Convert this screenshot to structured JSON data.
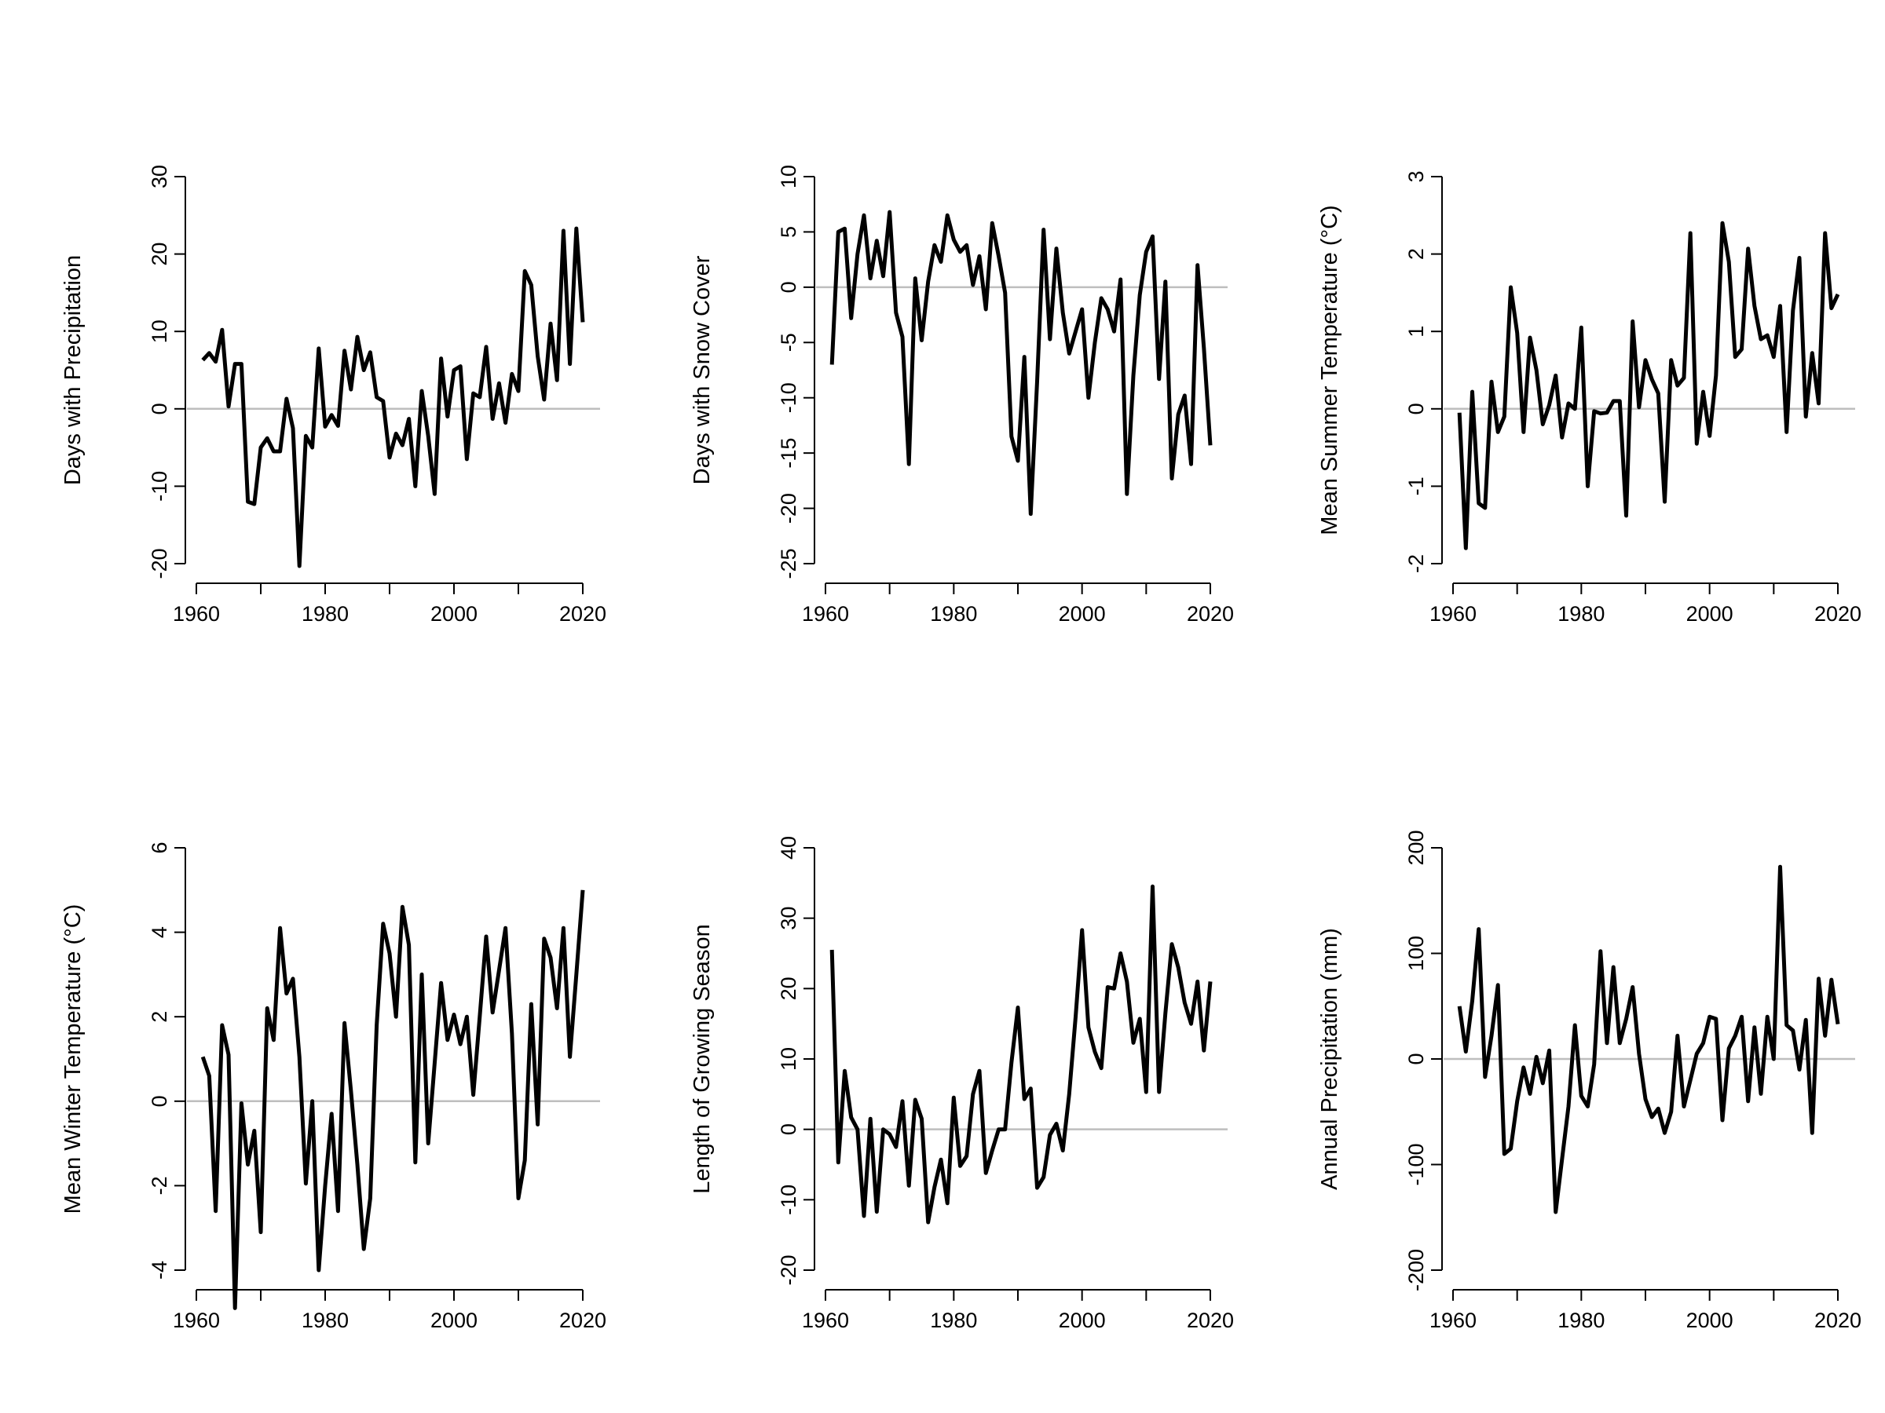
{
  "chart_data": [
    {
      "type": "line",
      "ylabel": "Days with Precipitation",
      "xlim": [
        1960,
        2020
      ],
      "ylim": [
        -20,
        30
      ],
      "x_ticks": [
        "1960",
        "1980",
        "2000",
        "2020"
      ],
      "y_ticks": [
        "-20",
        "-10",
        "0",
        "10",
        "20",
        "30"
      ],
      "reference_line": 0,
      "x": [
        1961,
        1962,
        1963,
        1964,
        1965,
        1966,
        1967,
        1968,
        1969,
        1970,
        1971,
        1972,
        1973,
        1974,
        1975,
        1976,
        1977,
        1978,
        1979,
        1980,
        1981,
        1982,
        1983,
        1984,
        1985,
        1986,
        1987,
        1988,
        1989,
        1990,
        1991,
        1992,
        1993,
        1994,
        1995,
        1996,
        1997,
        1998,
        1999,
        2000,
        2001,
        2002,
        2003,
        2004,
        2005,
        2006,
        2007,
        2008,
        2009,
        2010,
        2011,
        2012,
        2013,
        2014,
        2015,
        2016,
        2017,
        2018,
        2019,
        2020
      ],
      "series": [
        {
          "values": [
            6.3,
            7.2,
            6.1,
            10.2,
            0.3,
            5.8,
            5.8,
            -12,
            -12.3,
            -5,
            -3.8,
            -5.5,
            -5.5,
            1.3,
            -2.5,
            -20.3,
            -3.5,
            -5,
            7.8,
            -2.3,
            -0.8,
            -2.2,
            7.5,
            2.5,
            9.3,
            5,
            7.3,
            1.5,
            1,
            -6.3,
            -3.2,
            -4.7,
            -1.3,
            -10,
            2.3,
            -3.5,
            -11,
            6.5,
            -1,
            5,
            5.5,
            -6.5,
            2,
            1.5,
            8,
            -1.3,
            3.3,
            -1.8,
            4.5,
            2.3,
            17.8,
            16,
            6.8,
            1.2,
            11,
            3.7,
            23,
            5.8,
            23.3,
            11.2
          ]
        }
      ]
    },
    {
      "type": "line",
      "ylabel": "Days with Snow Cover",
      "xlim": [
        1960,
        2020
      ],
      "ylim": [
        -25,
        10
      ],
      "x_ticks": [
        "1960",
        "1980",
        "2000",
        "2020"
      ],
      "y_ticks": [
        "-25",
        "-20",
        "-15",
        "-10",
        "-5",
        "0",
        "5",
        "10"
      ],
      "reference_line": 0,
      "x": [
        1961,
        1962,
        1963,
        1964,
        1965,
        1966,
        1967,
        1968,
        1969,
        1970,
        1971,
        1972,
        1973,
        1974,
        1975,
        1976,
        1977,
        1978,
        1979,
        1980,
        1981,
        1982,
        1983,
        1984,
        1985,
        1986,
        1987,
        1988,
        1989,
        1990,
        1991,
        1992,
        1993,
        1994,
        1995,
        1996,
        1997,
        1998,
        1999,
        2000,
        2001,
        2002,
        2003,
        2004,
        2005,
        2006,
        2007,
        2008,
        2009,
        2010,
        2011,
        2012,
        2013,
        2014,
        2015,
        2016,
        2017,
        2018,
        2019,
        2020
      ],
      "series": [
        {
          "values": [
            -7,
            5,
            5.3,
            -2.8,
            3,
            6.5,
            0.8,
            4.2,
            1,
            6.8,
            -2.3,
            -4.5,
            -16,
            0.8,
            -4.8,
            0.5,
            3.8,
            2.3,
            6.5,
            4.3,
            3.2,
            3.8,
            0.2,
            2.8,
            -2,
            5.8,
            2.8,
            -0.5,
            -13.5,
            -15.7,
            -6.3,
            -20.5,
            -8.5,
            5.2,
            -4.7,
            3.5,
            -2.3,
            -6,
            -4,
            -2,
            -10,
            -5,
            -1,
            -2,
            -4,
            0.7,
            -18.7,
            -8,
            -0.7,
            3.2,
            4.6,
            -8.3,
            0.5,
            -17.3,
            -11.5,
            -9.8,
            -16,
            2,
            -5.5,
            -14.3
          ]
        }
      ]
    },
    {
      "type": "line",
      "ylabel": "Mean Summer Temperature (°C)",
      "xlim": [
        1960,
        2020
      ],
      "ylim": [
        -2,
        3
      ],
      "x_ticks": [
        "1960",
        "1980",
        "2000",
        "2020"
      ],
      "y_ticks": [
        "-2",
        "-1",
        "0",
        "1",
        "2",
        "3"
      ],
      "reference_line": 0,
      "x": [
        1961,
        1962,
        1963,
        1964,
        1965,
        1966,
        1967,
        1968,
        1969,
        1970,
        1971,
        1972,
        1973,
        1974,
        1975,
        1976,
        1977,
        1978,
        1979,
        1980,
        1981,
        1982,
        1983,
        1984,
        1985,
        1986,
        1987,
        1988,
        1989,
        1990,
        1991,
        1992,
        1993,
        1994,
        1995,
        1996,
        1997,
        1998,
        1999,
        2000,
        2001,
        2002,
        2003,
        2004,
        2005,
        2006,
        2007,
        2008,
        2009,
        2010,
        2011,
        2012,
        2013,
        2014,
        2015,
        2016,
        2017,
        2018,
        2019,
        2020
      ],
      "series": [
        {
          "values": [
            -0.05,
            -1.8,
            0.22,
            -1.22,
            -1.28,
            0.35,
            -0.3,
            -0.1,
            1.57,
            0.98,
            -0.3,
            0.92,
            0.5,
            -0.2,
            0.05,
            0.43,
            -0.37,
            0.07,
            0,
            1.05,
            -1,
            -0.03,
            -0.06,
            -0.05,
            0.1,
            0.1,
            -1.38,
            1.13,
            0.02,
            0.63,
            0.38,
            0.2,
            -1.2,
            0.63,
            0.3,
            0.4,
            2.27,
            -0.45,
            0.22,
            -0.35,
            0.43,
            2.4,
            1.9,
            0.67,
            0.77,
            2.07,
            1.33,
            0.9,
            0.95,
            0.67,
            1.33,
            -0.3,
            1.27,
            1.95,
            -0.1,
            0.72,
            0.07,
            2.27,
            1.3,
            1.48
          ]
        }
      ]
    },
    {
      "type": "line",
      "ylabel": "Mean Winter Temperature (°C)",
      "xlim": [
        1960,
        2020
      ],
      "ylim": [
        -4,
        6
      ],
      "x_ticks": [
        "1960",
        "1980",
        "2000",
        "2020"
      ],
      "y_ticks": [
        "-4",
        "-2",
        "0",
        "2",
        "4",
        "6"
      ],
      "reference_line": 0,
      "x": [
        1961,
        1962,
        1963,
        1964,
        1965,
        1966,
        1967,
        1968,
        1969,
        1970,
        1971,
        1972,
        1973,
        1974,
        1975,
        1976,
        1977,
        1978,
        1979,
        1980,
        1981,
        1982,
        1983,
        1984,
        1985,
        1986,
        1987,
        1988,
        1989,
        1990,
        1991,
        1992,
        1993,
        1994,
        1995,
        1996,
        1997,
        1998,
        1999,
        2000,
        2001,
        2002,
        2003,
        2004,
        2005,
        2006,
        2007,
        2008,
        2009,
        2010,
        2011,
        2012,
        2013,
        2014,
        2015,
        2016,
        2017,
        2018,
        2019,
        2020
      ],
      "series": [
        {
          "values": [
            1.05,
            0.6,
            -2.6,
            1.8,
            1.1,
            -4.9,
            -0.05,
            -1.5,
            -0.7,
            -3.1,
            2.2,
            1.45,
            4.1,
            2.55,
            2.9,
            1.05,
            -1.95,
            0,
            -4,
            -2,
            -0.3,
            -2.6,
            1.85,
            0.25,
            -1.5,
            -3.5,
            -2.3,
            1.8,
            4.2,
            3.5,
            2,
            4.6,
            3.7,
            -1.45,
            3,
            -1,
            0.9,
            2.8,
            1.45,
            2.05,
            1.35,
            2,
            0.15,
            2,
            3.9,
            2.1,
            3.1,
            4.1,
            1.6,
            -2.3,
            -1.4,
            2.3,
            -0.55,
            3.85,
            3.4,
            2.2,
            4.1,
            1.05,
            3,
            5
          ]
        }
      ]
    },
    {
      "type": "line",
      "ylabel": "Length of Growing Season",
      "xlim": [
        1960,
        2020
      ],
      "ylim": [
        -20,
        40
      ],
      "x_ticks": [
        "1960",
        "1980",
        "2000",
        "2020"
      ],
      "y_ticks": [
        "-20",
        "-10",
        "0",
        "10",
        "20",
        "30",
        "40"
      ],
      "reference_line": 0,
      "x": [
        1961,
        1962,
        1963,
        1964,
        1965,
        1966,
        1967,
        1968,
        1969,
        1970,
        1971,
        1972,
        1973,
        1974,
        1975,
        1976,
        1977,
        1978,
        1979,
        1980,
        1981,
        1982,
        1983,
        1984,
        1985,
        1986,
        1987,
        1988,
        1989,
        1990,
        1991,
        1992,
        1993,
        1994,
        1995,
        1996,
        1997,
        1998,
        1999,
        2000,
        2001,
        2002,
        2003,
        2004,
        2005,
        2006,
        2007,
        2008,
        2009,
        2010,
        2011,
        2012,
        2013,
        2014,
        2015,
        2016,
        2017,
        2018,
        2019,
        2020
      ],
      "series": [
        {
          "values": [
            25.5,
            -4.7,
            8.3,
            1.7,
            0,
            -12.3,
            1.5,
            -11.7,
            0,
            -0.7,
            -2.5,
            4,
            -8,
            4.2,
            1.5,
            -13.2,
            -8.2,
            -4.3,
            -10.5,
            4.5,
            -5.2,
            -3.8,
            5,
            8.3,
            -6.2,
            -3,
            0,
            0,
            9.5,
            17.3,
            4.3,
            5.8,
            -8.3,
            -6.8,
            -0.8,
            0.8,
            -3,
            5,
            16,
            28.3,
            14.5,
            11,
            8.7,
            20.2,
            20,
            25,
            21,
            12.3,
            15.7,
            5.3,
            34.5,
            5.3,
            16.5,
            26.3,
            23,
            18,
            15,
            21,
            11.2,
            21
          ]
        }
      ]
    },
    {
      "type": "line",
      "ylabel": "Annual Precipitation (mm)",
      "xlim": [
        1960,
        2020
      ],
      "ylim": [
        -200,
        200
      ],
      "x_ticks": [
        "1960",
        "1980",
        "2000",
        "2020"
      ],
      "y_ticks": [
        "-200",
        "-100",
        "0",
        "100",
        "200"
      ],
      "reference_line": 0,
      "x": [
        1961,
        1962,
        1963,
        1964,
        1965,
        1966,
        1967,
        1968,
        1969,
        1970,
        1971,
        1972,
        1973,
        1974,
        1975,
        1976,
        1977,
        1978,
        1979,
        1980,
        1981,
        1982,
        1983,
        1984,
        1985,
        1986,
        1987,
        1988,
        1989,
        1990,
        1991,
        1992,
        1993,
        1994,
        1995,
        1996,
        1997,
        1998,
        1999,
        2000,
        2001,
        2002,
        2003,
        2004,
        2005,
        2006,
        2007,
        2008,
        2009,
        2010,
        2011,
        2012,
        2013,
        2014,
        2015,
        2016,
        2017,
        2018,
        2019,
        2020
      ],
      "series": [
        {
          "values": [
            50,
            7,
            55,
            123,
            -17,
            22,
            70,
            -90,
            -85,
            -40,
            -8,
            -33,
            2,
            -23,
            8,
            -145,
            -95,
            -45,
            32,
            -35,
            -45,
            -5,
            102,
            15,
            87,
            15,
            38,
            68,
            5,
            -38,
            -55,
            -47,
            -70,
            -50,
            22,
            -45,
            -20,
            5,
            15,
            40,
            38,
            -58,
            10,
            22,
            40,
            -40,
            30,
            -33,
            40,
            0,
            182,
            32,
            27,
            -10,
            37,
            -70,
            76,
            22,
            75,
            33
          ]
        }
      ]
    }
  ]
}
